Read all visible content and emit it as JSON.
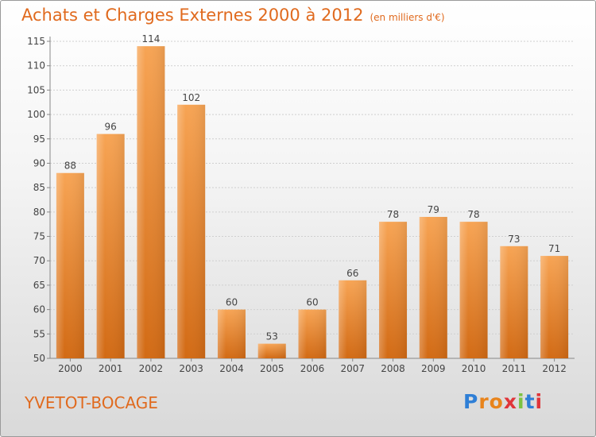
{
  "header": {
    "title": "Achats et Charges Externes 2000 à 2012",
    "unit": "(en milliers d'€)"
  },
  "footer": {
    "commune": "YVETOT-BOCAGE",
    "logo": "Proxiti"
  },
  "colors": {
    "title": "#e06a1e",
    "bar_light": "#f7a454",
    "bar_dark": "#d26a14"
  },
  "chart_data": {
    "type": "bar",
    "title": "Achats et Charges Externes 2000 à 2012",
    "xlabel": "",
    "ylabel": "",
    "categories": [
      "2000",
      "2001",
      "2002",
      "2003",
      "2004",
      "2005",
      "2006",
      "2007",
      "2008",
      "2009",
      "2010",
      "2011",
      "2012"
    ],
    "values": [
      88,
      96,
      114,
      102,
      60,
      53,
      60,
      66,
      78,
      79,
      78,
      73,
      71
    ],
    "ylim": [
      50,
      115
    ],
    "yticks": [
      50,
      55,
      60,
      65,
      70,
      75,
      80,
      85,
      90,
      95,
      100,
      105,
      110,
      115
    ],
    "grid": true,
    "legend": "none"
  }
}
